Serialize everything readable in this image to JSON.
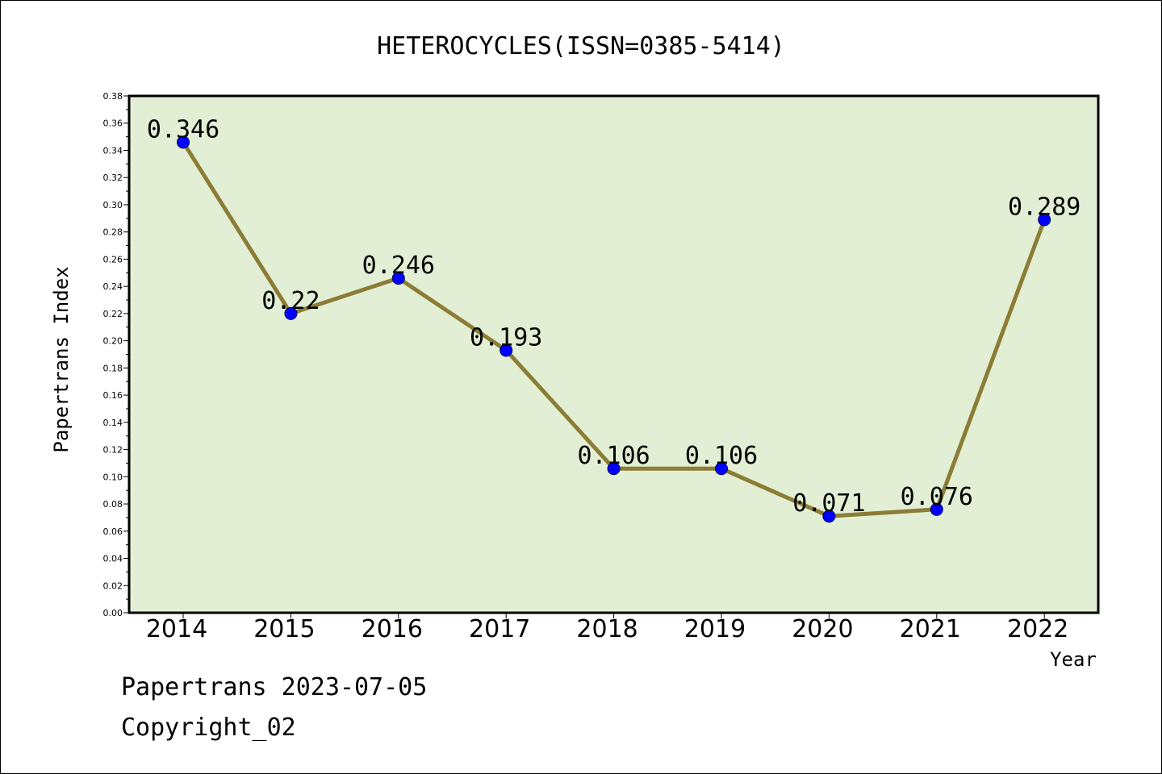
{
  "chart_data": {
    "type": "line",
    "title": "HETEROCYCLES(ISSN=0385-5414)",
    "xlabel": "Year",
    "ylabel": "Papertrans Index",
    "categories": [
      "2014",
      "2015",
      "2016",
      "2017",
      "2018",
      "2019",
      "2020",
      "2021",
      "2022"
    ],
    "values": [
      0.346,
      0.22,
      0.246,
      0.193,
      0.106,
      0.106,
      0.071,
      0.076,
      0.289
    ],
    "data_labels": [
      "0.346",
      "0.22",
      "0.246",
      "0.193",
      "0.106",
      "0.106",
      "0.071",
      "0.076",
      "0.289"
    ],
    "ylim": [
      0,
      0.38
    ],
    "y_ticks": [
      "0.00",
      "0.02",
      "0.04",
      "0.06",
      "0.08",
      "0.10",
      "0.12",
      "0.14",
      "0.16",
      "0.18",
      "0.20",
      "0.22",
      "0.24",
      "0.26",
      "0.28",
      "0.30",
      "0.32",
      "0.34",
      "0.36",
      "0.38"
    ],
    "grid": false,
    "legend": "none",
    "colors": {
      "plot_background": "#e2efd5",
      "line": "#8b7d35",
      "marker": "#0000ff"
    }
  },
  "footer": {
    "date_line": "Papertrans 2023-07-05",
    "copyright": "Copyright_02"
  }
}
